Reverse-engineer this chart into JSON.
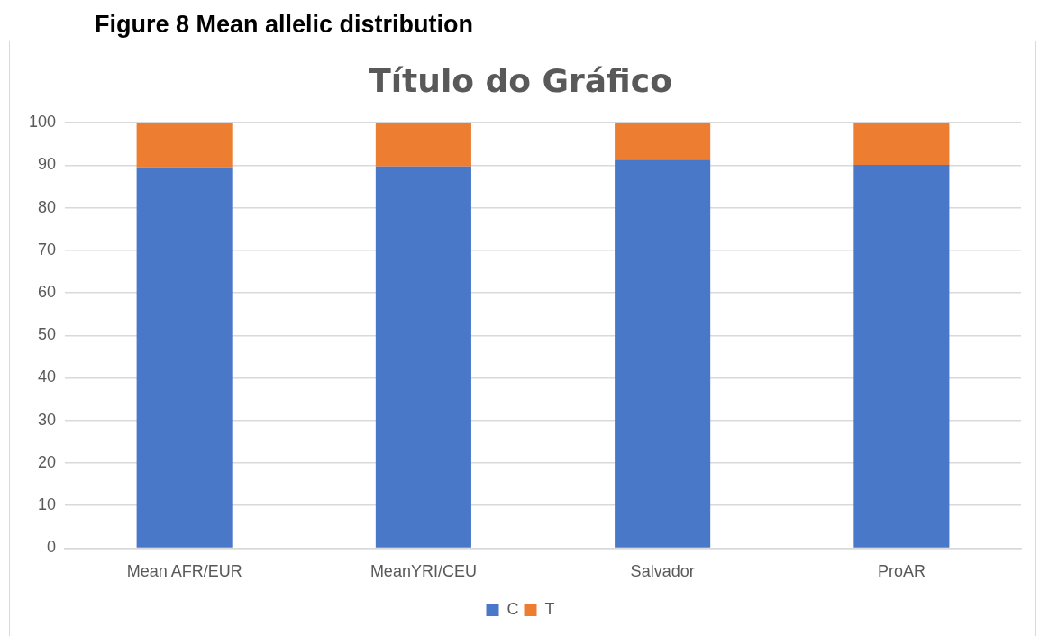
{
  "chart_data": {
    "type": "bar",
    "title": "Título do Gráfico",
    "annotations": [
      "Figure 8 Mean allelic distribution"
    ],
    "categories": [
      "Mean AFR/EUR",
      "MeanYRI/CEU",
      "Salvador",
      "ProAR"
    ],
    "series": [
      {
        "name": "C",
        "color": "#4a78c9",
        "values": [
          89.5,
          89.7,
          91.3,
          90.1
        ]
      },
      {
        "name": "T",
        "color": "#ed7d31",
        "values": [
          10.5,
          10.3,
          8.7,
          9.9
        ]
      }
    ],
    "stacked": true,
    "ylim": [
      0,
      100
    ],
    "yticks": [
      0,
      10,
      20,
      30,
      40,
      50,
      60,
      70,
      80,
      90,
      100
    ],
    "grid": "y",
    "legend": "bottom"
  }
}
